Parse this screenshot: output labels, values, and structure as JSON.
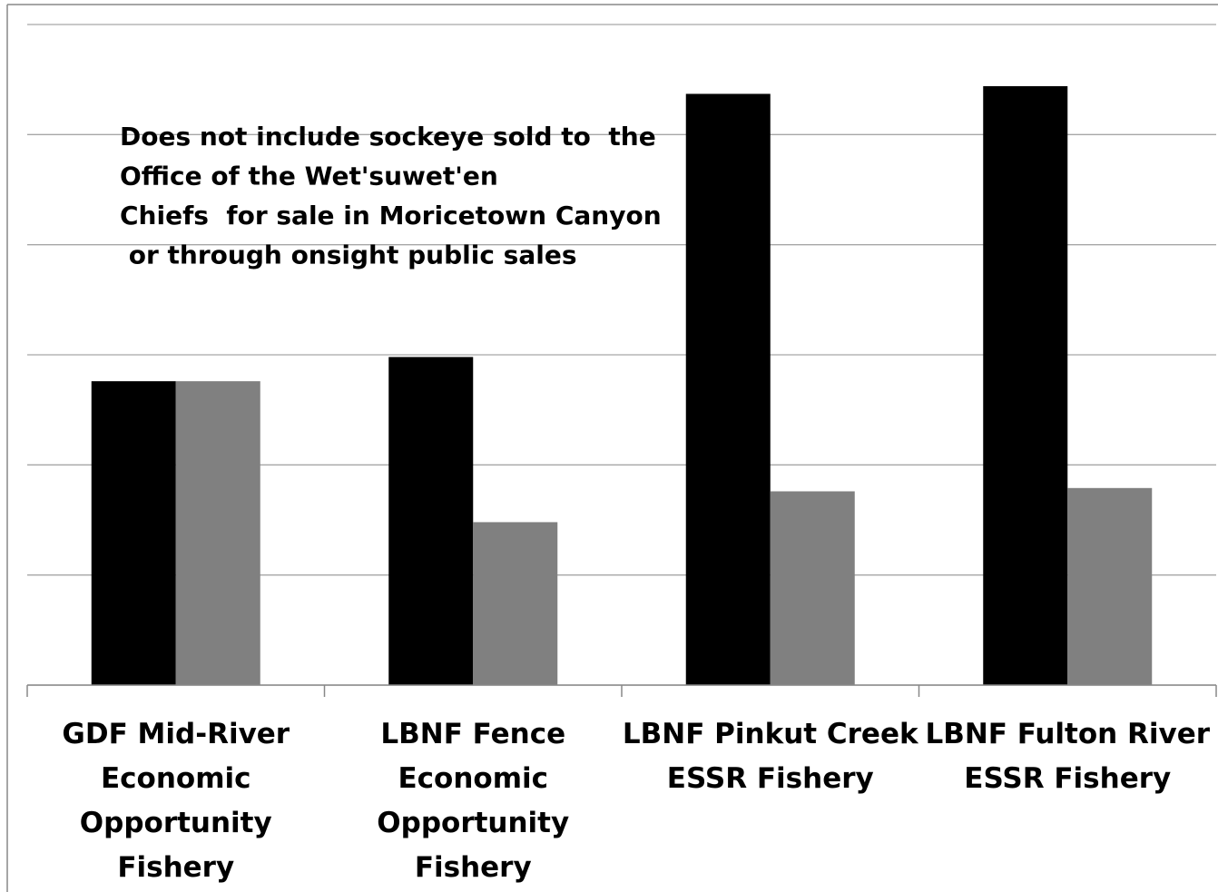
{
  "chart_data": {
    "type": "bar",
    "annotation": [
      "Does not include sockeye sold to  the",
      "Office of the Wet'suwet'en",
      "Chiefs  for sale in Moricetown Canyon",
      " or through onsight public sales"
    ],
    "categories": [
      "GDF Mid-River\nEconomic\nOpportunity\nFishery",
      "LBNF Fence\nEconomic\nOpportunity\nFishery",
      "LBNF Pinkut Creek\nESSR Fishery",
      "LBNF Fulton River\nESSR Fishery"
    ],
    "series": [
      {
        "color": "#000000",
        "values": [
          2.76,
          2.98,
          5.37,
          5.44
        ]
      },
      {
        "color": "#808080",
        "values": [
          2.76,
          1.48,
          1.76,
          1.79
        ]
      }
    ],
    "ylim": [
      0,
      6
    ],
    "yticks": [
      0,
      1,
      2,
      3,
      4,
      5,
      6
    ],
    "grid": true
  }
}
